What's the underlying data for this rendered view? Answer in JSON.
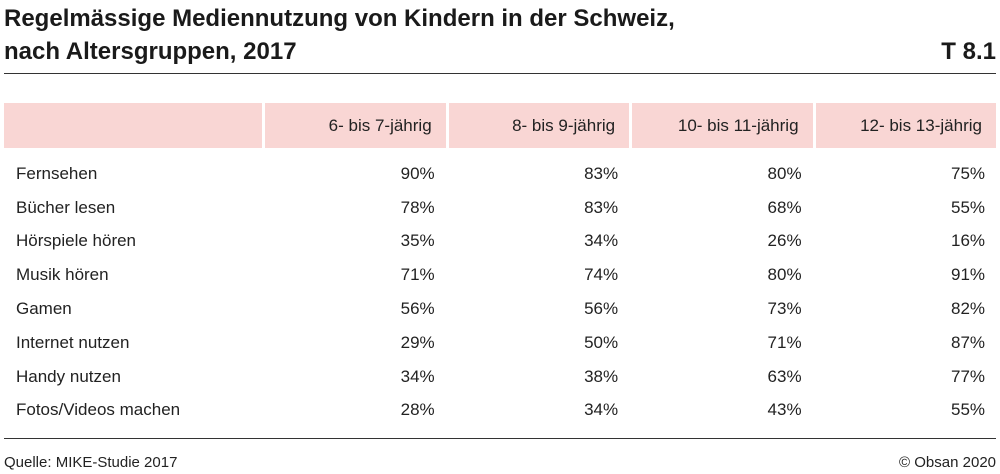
{
  "title_line1": "Regelmässige Mediennutzung von Kindern in der Schweiz,",
  "title_line2": "nach Altersgruppen, 2017",
  "table_id": "T 8.1",
  "header_color": "#f9d6d4",
  "columns": [
    "",
    "6- bis 7-jährig",
    "8- bis 9-jährig",
    "10- bis 11-jährig",
    "12- bis 13-jährig"
  ],
  "rows": [
    {
      "label": "Fernsehen",
      "values": [
        "90%",
        "83%",
        "80%",
        "75%"
      ]
    },
    {
      "label": "Bücher lesen",
      "values": [
        "78%",
        "83%",
        "68%",
        "55%"
      ]
    },
    {
      "label": "Hörspiele hören",
      "values": [
        "35%",
        "34%",
        "26%",
        "16%"
      ]
    },
    {
      "label": "Musik hören",
      "values": [
        "71%",
        "74%",
        "80%",
        "91%"
      ]
    },
    {
      "label": "Gamen",
      "values": [
        "56%",
        "56%",
        "73%",
        "82%"
      ]
    },
    {
      "label": "Internet nutzen",
      "values": [
        "29%",
        "50%",
        "71%",
        "87%"
      ]
    },
    {
      "label": "Handy nutzen",
      "values": [
        "34%",
        "38%",
        "63%",
        "77%"
      ]
    },
    {
      "label": "Fotos/Videos machen",
      "values": [
        "28%",
        "34%",
        "43%",
        "55%"
      ]
    }
  ],
  "source": "Quelle: MIKE-Studie 2017",
  "copyright": "© Obsan 2020",
  "chart_data": {
    "type": "table",
    "title": "Regelmässige Mediennutzung von Kindern in der Schweiz, nach Altersgruppen, 2017",
    "categories": [
      "Fernsehen",
      "Bücher lesen",
      "Hörspiele hören",
      "Musik hören",
      "Gamen",
      "Internet nutzen",
      "Handy nutzen",
      "Fotos/Videos machen"
    ],
    "series": [
      {
        "name": "6- bis 7-jährig",
        "values": [
          90,
          78,
          35,
          71,
          56,
          29,
          34,
          28
        ]
      },
      {
        "name": "8- bis 9-jährig",
        "values": [
          83,
          83,
          34,
          74,
          56,
          50,
          38,
          34
        ]
      },
      {
        "name": "10- bis 11-jährig",
        "values": [
          80,
          68,
          26,
          80,
          73,
          71,
          63,
          43
        ]
      },
      {
        "name": "12- bis 13-jährig",
        "values": [
          75,
          55,
          16,
          91,
          82,
          87,
          77,
          55
        ]
      }
    ]
  }
}
